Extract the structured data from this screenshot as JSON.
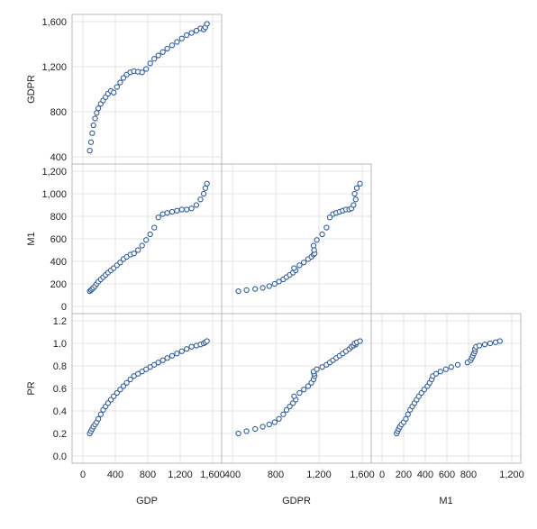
{
  "chart_data": {
    "type": "scatter",
    "layout": "scatterplot-matrix-lower-triangle",
    "grid": true,
    "marker": {
      "shape": "open-circle",
      "color": "#2f5ea8",
      "fill": "#ffffff"
    },
    "variables": [
      {
        "name": "GDP",
        "label": "GDP",
        "range": [
          0,
          1600
        ],
        "ticks": [
          "400",
          "800",
          "1,200",
          "1,600"
        ],
        "tick_values": [
          400,
          800,
          1200,
          1600
        ]
      },
      {
        "name": "GDPR",
        "label": "GDPR",
        "range": [
          400,
          1600
        ],
        "ticks": [
          "400",
          "800",
          "1,200",
          "1,600"
        ],
        "tick_values": [
          400,
          800,
          1200,
          1600
        ]
      },
      {
        "name": "M1",
        "label": "M1",
        "range": [
          0,
          1200
        ],
        "ticks": [
          "0",
          "200",
          "400",
          "600",
          "800",
          "1,000",
          "1,200"
        ],
        "tick_values": [
          0,
          200,
          400,
          600,
          800,
          1000,
          1200
        ]
      },
      {
        "name": "PR",
        "label": "PR",
        "range": [
          0,
          1.2
        ],
        "ticks": [
          "0.0",
          "0.2",
          "0.4",
          "0.6",
          "0.8",
          "1.0",
          "1.2"
        ],
        "tick_values": [
          0,
          0.2,
          0.4,
          0.6,
          0.8,
          1.0,
          1.2
        ]
      }
    ],
    "x_axis_ticks": {
      "GDP": {
        "labels": [
          "0",
          "400",
          "800",
          "1,200",
          "1,600"
        ],
        "values": [
          0,
          400,
          800,
          1200,
          1600
        ]
      },
      "GDPR": {
        "labels": [
          "400",
          "800",
          "1,200",
          "1,600"
        ],
        "values": [
          400,
          800,
          1200,
          1600
        ]
      },
      "M1": {
        "labels": [
          "0",
          "200",
          "400",
          "600",
          "800",
          "1,200"
        ],
        "values": [
          0,
          200,
          400,
          600,
          800,
          1200
        ]
      }
    },
    "panels": [
      {
        "x": "GDP",
        "y": "GDPR",
        "row": 0,
        "col": 0
      },
      {
        "x": "GDP",
        "y": "M1",
        "row": 1,
        "col": 0
      },
      {
        "x": "GDPR",
        "y": "M1",
        "row": 1,
        "col": 1
      },
      {
        "x": "GDP",
        "y": "PR",
        "row": 2,
        "col": 0
      },
      {
        "x": "GDPR",
        "y": "PR",
        "row": 2,
        "col": 1
      },
      {
        "x": "M1",
        "y": "PR",
        "row": 2,
        "col": 2
      }
    ],
    "series": {
      "GDP": [
        85,
        100,
        115,
        130,
        150,
        170,
        190,
        220,
        250,
        280,
        310,
        345,
        380,
        420,
        460,
        500,
        540,
        585,
        630,
        680,
        730,
        780,
        830,
        880,
        930,
        985,
        1040,
        1100,
        1160,
        1220,
        1280,
        1340,
        1400,
        1450,
        1490,
        1510,
        1530
      ],
      "GDPR": [
        455,
        530,
        610,
        680,
        740,
        790,
        830,
        870,
        900,
        930,
        960,
        985,
        970,
        1020,
        1060,
        1100,
        1130,
        1150,
        1160,
        1155,
        1150,
        1180,
        1230,
        1270,
        1300,
        1330,
        1360,
        1390,
        1420,
        1450,
        1480,
        1500,
        1520,
        1540,
        1530,
        1550,
        1580
      ],
      "M1": [
        135,
        145,
        155,
        165,
        180,
        200,
        220,
        240,
        260,
        280,
        300,
        320,
        340,
        365,
        390,
        420,
        440,
        460,
        470,
        500,
        540,
        590,
        640,
        700,
        790,
        820,
        830,
        840,
        850,
        860,
        860,
        870,
        900,
        950,
        1000,
        1050,
        1090
      ],
      "PR": [
        0.2,
        0.22,
        0.24,
        0.26,
        0.28,
        0.3,
        0.33,
        0.37,
        0.41,
        0.44,
        0.47,
        0.5,
        0.53,
        0.56,
        0.59,
        0.62,
        0.65,
        0.68,
        0.71,
        0.73,
        0.75,
        0.77,
        0.79,
        0.81,
        0.83,
        0.85,
        0.87,
        0.89,
        0.91,
        0.93,
        0.95,
        0.97,
        0.98,
        0.99,
        1.0,
        1.01,
        1.02
      ]
    }
  }
}
